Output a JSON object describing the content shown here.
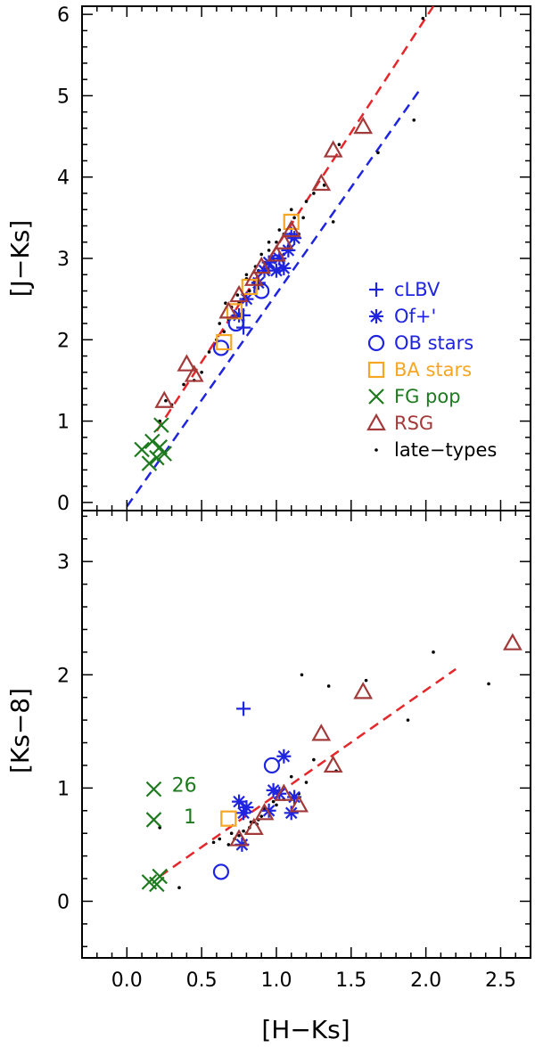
{
  "colors": {
    "blue": "#1f24e0",
    "orange": "#f5a623",
    "green": "#1e7a1e",
    "brown": "#a33a3a",
    "red": "#e5262a",
    "black": "#000000"
  },
  "chart_data": [
    {
      "type": "scatter",
      "panel": "top",
      "xlabel": "",
      "ylabel": "[J−Ks]",
      "xlim": [
        -0.3,
        2.7
      ],
      "ylim": [
        -0.1,
        6.1
      ],
      "yticks": [
        "0",
        "1",
        "2",
        "3",
        "4",
        "5",
        "6"
      ],
      "lines": [
        {
          "name": "red-dashed",
          "color": "red",
          "x": [
            0.2,
            2.05
          ],
          "y": [
            0.88,
            6.1
          ]
        },
        {
          "name": "blue-dashed",
          "color": "blue",
          "x": [
            0.0,
            1.95
          ],
          "y": [
            -0.05,
            5.05
          ]
        }
      ],
      "series": [
        {
          "name": "cLBV",
          "marker": "plus",
          "color": "blue",
          "x": [
            0.78,
            1.1,
            0.78
          ],
          "y": [
            2.15,
            3.3,
            2.3
          ]
        },
        {
          "name": "Of+'",
          "marker": "asterisk",
          "color": "blue",
          "x": [
            0.75,
            0.8,
            0.88,
            0.92,
            0.95,
            1.0,
            1.02,
            1.05,
            1.08,
            1.12
          ],
          "y": [
            2.3,
            2.5,
            2.7,
            2.85,
            2.95,
            2.85,
            3.0,
            2.88,
            3.1,
            3.25
          ]
        },
        {
          "name": "OB stars",
          "marker": "circle",
          "color": "blue",
          "x": [
            0.63,
            0.73,
            0.9,
            1.0
          ],
          "y": [
            1.9,
            2.2,
            2.6,
            2.95
          ]
        },
        {
          "name": "BA stars",
          "marker": "square",
          "color": "orange",
          "x": [
            0.65,
            0.72,
            0.82,
            1.1
          ],
          "y": [
            1.97,
            2.35,
            2.65,
            3.45
          ]
        },
        {
          "name": "FG pop",
          "marker": "cross",
          "color": "green",
          "x": [
            0.1,
            0.15,
            0.17,
            0.2,
            0.22,
            0.23,
            0.25
          ],
          "y": [
            0.65,
            0.48,
            0.75,
            0.55,
            0.68,
            0.95,
            0.6
          ]
        },
        {
          "name": "RSG",
          "marker": "triangle",
          "color": "brown",
          "x": [
            0.25,
            0.4,
            0.45,
            0.68,
            0.75,
            0.85,
            0.9,
            1.0,
            1.05,
            1.1,
            1.3,
            1.38,
            1.58
          ],
          "y": [
            1.25,
            1.7,
            1.57,
            2.35,
            2.55,
            2.75,
            2.9,
            3.05,
            3.2,
            3.35,
            3.92,
            4.33,
            4.62
          ]
        },
        {
          "name": "late-types",
          "marker": "dot",
          "color": "black",
          "x": [
            1.98,
            1.92,
            1.68,
            1.42,
            1.38,
            1.32,
            1.2,
            1.15,
            1.12,
            1.1,
            1.08,
            1.05,
            1.02,
            1.0,
            0.98,
            0.95,
            0.92,
            0.9,
            0.88,
            0.85,
            0.82,
            0.8,
            0.78,
            0.75,
            0.72,
            0.7,
            0.68,
            0.65,
            0.6,
            0.55,
            0.5,
            0.45,
            0.38,
            0.3,
            0.26,
            0.22,
            1.18,
            1.05,
            0.95,
            0.86,
            0.8,
            0.74,
            0.66,
            0.62,
            1.25
          ],
          "y": [
            5.95,
            4.7,
            4.3,
            4.4,
            3.45,
            3.9,
            3.7,
            3.3,
            3.5,
            3.6,
            3.15,
            3.05,
            3.35,
            3.2,
            3.0,
            3.1,
            2.95,
            3.05,
            2.85,
            2.7,
            2.6,
            2.75,
            2.5,
            2.45,
            2.3,
            2.4,
            2.25,
            2.1,
            2.0,
            1.85,
            1.6,
            1.5,
            1.45,
            1.2,
            1.25,
            1.0,
            3.5,
            3.3,
            3.2,
            2.9,
            2.8,
            2.55,
            2.45,
            2.2,
            3.8
          ]
        }
      ],
      "legend": {
        "position": "right",
        "entries": [
          {
            "label": "cLBV",
            "marker": "plus",
            "color": "blue"
          },
          {
            "label": "Of+'",
            "marker": "asterisk",
            "color": "blue"
          },
          {
            "label": "OB stars",
            "marker": "circle",
            "color": "blue"
          },
          {
            "label": "BA stars",
            "marker": "square",
            "color": "orange"
          },
          {
            "label": "FG pop",
            "marker": "cross",
            "color": "green"
          },
          {
            "label": "RSG",
            "marker": "triangle",
            "color": "brown"
          },
          {
            "label": "late−types",
            "marker": "dot",
            "color": "black"
          }
        ]
      }
    },
    {
      "type": "scatter",
      "panel": "bottom",
      "xlabel": "[H−Ks]",
      "ylabel": "[Ks−8]",
      "xlim": [
        -0.3,
        2.7
      ],
      "ylim": [
        -0.5,
        3.45
      ],
      "xticks": [
        "0.0",
        "0.5",
        "1.0",
        "1.5",
        "2.0",
        "2.5"
      ],
      "yticks": [
        "0",
        "1",
        "2",
        "3"
      ],
      "lines": [
        {
          "name": "red-dashed",
          "color": "red",
          "x": [
            0.22,
            2.2
          ],
          "y": [
            0.22,
            2.05
          ]
        }
      ],
      "series": [
        {
          "name": "cLBV",
          "marker": "plus",
          "color": "blue",
          "x": [
            0.78
          ],
          "y": [
            1.7
          ]
        },
        {
          "name": "Of+'",
          "marker": "asterisk",
          "color": "blue",
          "x": [
            0.75,
            0.78,
            0.8,
            0.95,
            0.98,
            1.02,
            1.05,
            1.1,
            1.12,
            0.77
          ],
          "y": [
            0.88,
            0.78,
            0.83,
            0.8,
            0.98,
            0.95,
            1.28,
            0.78,
            0.92,
            0.5
          ]
        },
        {
          "name": "OB stars",
          "marker": "circle",
          "color": "blue",
          "x": [
            0.63,
            0.97
          ],
          "y": [
            0.26,
            1.2
          ]
        },
        {
          "name": "BA stars",
          "marker": "square",
          "color": "orange",
          "x": [
            0.68
          ],
          "y": [
            0.73
          ]
        },
        {
          "name": "FG pop",
          "marker": "cross",
          "color": "green",
          "x": [
            0.18,
            0.18,
            0.15,
            0.2,
            0.22
          ],
          "y": [
            0.99,
            0.72,
            0.17,
            0.15,
            0.22
          ]
        },
        {
          "name": "RSG",
          "marker": "triangle",
          "color": "brown",
          "x": [
            2.58,
            1.58,
            1.3,
            1.38,
            1.15,
            1.05,
            0.92,
            0.85,
            0.75
          ],
          "y": [
            2.28,
            1.85,
            1.48,
            1.2,
            0.85,
            0.95,
            0.78,
            0.65,
            0.55
          ]
        },
        {
          "name": "late-types",
          "marker": "dot",
          "color": "black",
          "x": [
            2.05,
            2.42,
            1.88,
            1.35,
            1.17,
            1.2,
            1.1,
            1.05,
            1.0,
            0.95,
            0.9,
            0.88,
            0.85,
            0.82,
            0.8,
            0.78,
            0.75,
            0.72,
            0.7,
            0.68,
            0.62,
            0.58,
            0.35,
            0.22,
            1.6,
            1.4,
            1.25,
            1.15,
            0.98,
            0.92,
            0.87,
            0.83
          ],
          "y": [
            2.2,
            1.92,
            1.6,
            1.9,
            2.0,
            1.05,
            1.1,
            0.9,
            0.85,
            0.8,
            0.75,
            0.72,
            0.7,
            0.65,
            0.6,
            0.62,
            0.58,
            0.55,
            0.6,
            0.5,
            0.55,
            0.52,
            0.12,
            0.65,
            1.95,
            1.15,
            1.25,
            0.95,
            0.88,
            0.82,
            0.68,
            0.7
          ]
        }
      ],
      "annotations": [
        {
          "text": "26",
          "x": 0.3,
          "y": 1.03,
          "color": "green"
        },
        {
          "text": "1",
          "x": 0.38,
          "y": 0.75,
          "color": "green"
        }
      ]
    }
  ]
}
